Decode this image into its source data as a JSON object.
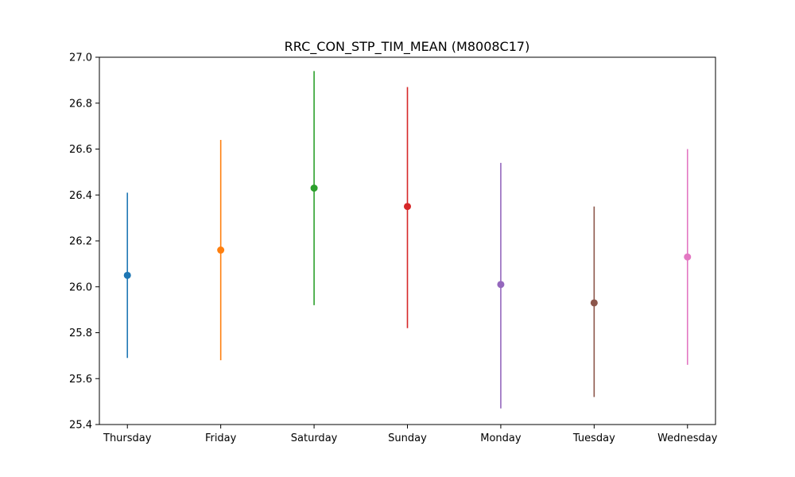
{
  "chart_data": {
    "type": "errorbar",
    "title": "RRC_CON_STP_TIM_MEAN (M8008C17)",
    "xlabel": "",
    "ylabel": "",
    "categories": [
      "Thursday",
      "Friday",
      "Saturday",
      "Sunday",
      "Monday",
      "Tuesday",
      "Wednesday"
    ],
    "values": [
      26.05,
      26.16,
      26.43,
      26.35,
      26.01,
      25.93,
      26.13
    ],
    "lower": [
      25.69,
      25.68,
      25.92,
      25.82,
      25.47,
      25.52,
      25.66
    ],
    "upper": [
      26.41,
      26.64,
      26.94,
      26.87,
      26.54,
      26.35,
      26.6
    ],
    "colors": [
      "#1f77b4",
      "#ff7f0e",
      "#2ca02c",
      "#d62728",
      "#9467bd",
      "#8c564b",
      "#e377c2"
    ],
    "ylim": [
      25.4,
      27.0
    ],
    "yticks": [
      "25.4",
      "25.6",
      "25.8",
      "26.0",
      "26.2",
      "26.4",
      "26.6",
      "26.8",
      "27.0"
    ],
    "grid": false,
    "legend": "none"
  }
}
